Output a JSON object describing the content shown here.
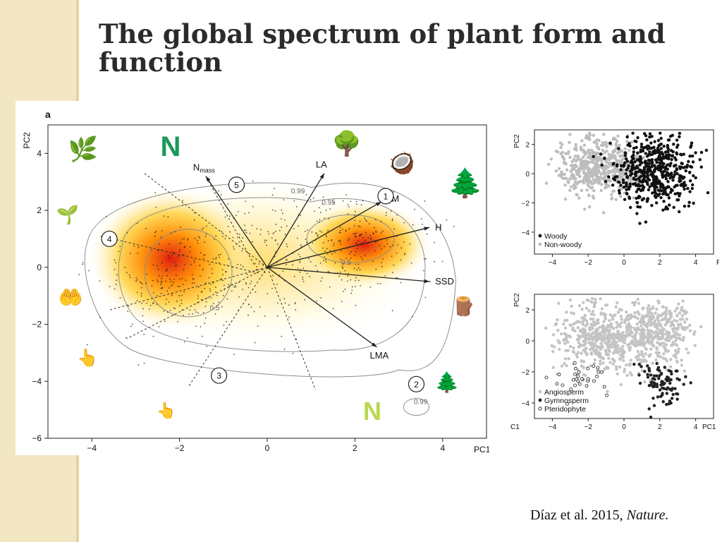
{
  "slide": {
    "title": "The global spectrum of plant form and function",
    "citation_text": "Díaz et al. 2015,",
    "citation_journal": "Nature."
  },
  "chart_data": [
    {
      "type": "scatter",
      "panel_label": "a",
      "xlabel": "PC1",
      "ylabel": "PC2",
      "xlim": [
        -5,
        5
      ],
      "ylim": [
        -6,
        5
      ],
      "xticks": [
        -4,
        -2,
        0,
        2,
        4
      ],
      "yticks": [
        -6,
        -4,
        -2,
        0,
        2,
        4
      ],
      "grid": false,
      "density_hotspots": [
        {
          "x": -2.2,
          "y": 0.3
        },
        {
          "x": 2.2,
          "y": 0.8
        }
      ],
      "contour_labels": [
        {
          "text": "0.99",
          "x": 0.7,
          "y": 2.6
        },
        {
          "text": "0.95",
          "x": 1.4,
          "y": 2.2
        },
        {
          "text": "0.5",
          "x": -1.2,
          "y": -1.5
        },
        {
          "text": "0.5",
          "x": 1.8,
          "y": 0.1
        },
        {
          "text": "0.99",
          "x": 3.5,
          "y": -4.8
        }
      ],
      "vectors": [
        {
          "label": "LA",
          "x": 1.3,
          "y": 3.3
        },
        {
          "label": "SM",
          "x": 2.6,
          "y": 2.3
        },
        {
          "label": "H",
          "x": 3.7,
          "y": 1.4
        },
        {
          "label": "SSD",
          "x": 3.7,
          "y": -0.5
        },
        {
          "label": "LMA",
          "x": 2.5,
          "y": -2.8
        },
        {
          "label": "N",
          "sublabel": "mass",
          "x": -1.4,
          "y": 3.2
        }
      ],
      "circled_numbers": [
        {
          "text": "1",
          "x": 2.7,
          "y": 2.5
        },
        {
          "text": "2",
          "x": 3.4,
          "y": -4.1
        },
        {
          "text": "3",
          "x": -1.1,
          "y": -3.8
        },
        {
          "text": "4",
          "x": -3.6,
          "y": 1.0
        },
        {
          "text": "5",
          "x": -0.7,
          "y": 2.9
        }
      ],
      "icons": [
        {
          "name": "leaf-icon",
          "glyph": "🌿"
        },
        {
          "name": "nitrogen-n-icon",
          "glyph": "N"
        },
        {
          "name": "tree-icon",
          "glyph": "🌳"
        },
        {
          "name": "seed-in-hand-icon",
          "glyph": "🥥"
        },
        {
          "name": "tall-tree-icon",
          "glyph": "🌲"
        },
        {
          "name": "herb-icon",
          "glyph": "🌱"
        },
        {
          "name": "seedling-in-hand-icon",
          "glyph": "🤲"
        },
        {
          "name": "finger-seed-icon",
          "glyph": "👆"
        },
        {
          "name": "wood-section-icon",
          "glyph": "🪵"
        },
        {
          "name": "conifer-twig-icon",
          "glyph": "🌲"
        },
        {
          "name": "finger-leaf-icon",
          "glyph": "👆"
        },
        {
          "name": "nitrogen-n-light-icon",
          "glyph": "N"
        }
      ],
      "colors": {
        "hot": "#e01e10",
        "warm": "#ff8c00",
        "mid": "#ffd23f",
        "cool": "#fffbe0",
        "nitrogen": "#1a9a5a",
        "nitrogen_light": "#b8d84f"
      }
    },
    {
      "type": "scatter",
      "xlabel": "P",
      "ylabel": "PC2",
      "xlim": [
        -5,
        5
      ],
      "ylim": [
        -5.5,
        3
      ],
      "xticks": [
        -4,
        -2,
        0,
        2,
        4
      ],
      "yticks": [
        -4,
        -2,
        0,
        2
      ],
      "grid": false,
      "legend_position": "bottom-left",
      "series": [
        {
          "name": "Woody",
          "color": "#111111",
          "center": [
            1.8,
            0.2
          ],
          "spread": [
            1.1,
            1.2
          ]
        },
        {
          "name": "Non-woody",
          "color": "#bdbdbd",
          "center": [
            -1.5,
            0.5
          ],
          "spread": [
            1.1,
            1.0
          ]
        }
      ]
    },
    {
      "type": "scatter",
      "xlabel": "PC1",
      "ylabel": "PC2",
      "ylabel_partial": "C1",
      "xlim": [
        -5,
        5
      ],
      "ylim": [
        -5,
        3
      ],
      "xticks": [
        -4,
        -2,
        0,
        2,
        4
      ],
      "yticks": [
        -4,
        -2,
        0,
        2
      ],
      "grid": false,
      "legend_position": "bottom-left",
      "series": [
        {
          "name": "Angiosperm",
          "color": "#c4c4c4",
          "marker": "filled"
        },
        {
          "name": "Gymnosperm",
          "color": "#222222",
          "marker": "filled",
          "center": [
            2.0,
            -2.6
          ],
          "spread": [
            0.6,
            0.7
          ]
        },
        {
          "name": "Pteridophyte",
          "color": "#333333",
          "marker": "open",
          "center": [
            -2.4,
            -2.3
          ],
          "spread": [
            0.9,
            0.5
          ]
        }
      ]
    }
  ]
}
